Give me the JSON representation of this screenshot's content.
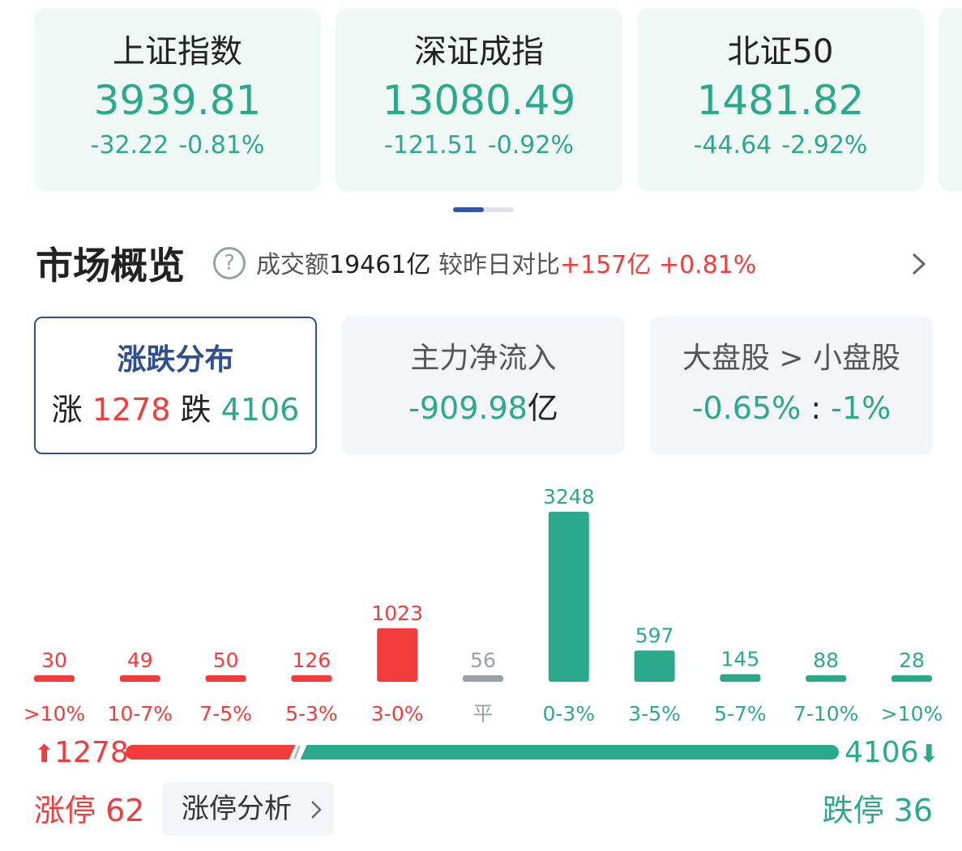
{
  "indices": [
    {
      "name": "上证指数",
      "value": "3939.81",
      "change": "-32.22",
      "pct": "-0.81%"
    },
    {
      "name": "深证成指",
      "value": "13080.49",
      "change": "-121.51",
      "pct": "-0.92%"
    },
    {
      "name": "北证50",
      "value": "1481.82",
      "change": "-44.64",
      "pct": "-2.92%"
    }
  ],
  "overview": {
    "title": "市场概览",
    "turnover_label": "成交额",
    "turnover_value": "19461亿",
    "compare_label": "较昨日对比",
    "compare_value": "+157亿",
    "compare_pct": "+0.81%"
  },
  "tabs": {
    "dist": {
      "title": "涨跌分布",
      "up_label": "涨",
      "up_value": "1278",
      "down_label": "跌",
      "down_value": "4106"
    },
    "flow": {
      "title": "主力净流入",
      "value": "-909.98",
      "unit": "亿"
    },
    "cap": {
      "title": "大盘股 > 小盘股",
      "large": "-0.65%",
      "sep": ":",
      "small": "-1%"
    }
  },
  "chart_data": {
    "type": "bar",
    "categories": [
      ">10%",
      "10-7%",
      "7-5%",
      "5-3%",
      "3-0%",
      "平",
      "0-3%",
      "3-5%",
      "5-7%",
      "7-10%",
      ">10%"
    ],
    "values": [
      30,
      49,
      50,
      126,
      1023,
      56,
      3248,
      597,
      145,
      88,
      28
    ],
    "colors": [
      "#f23c3c",
      "#f23c3c",
      "#f23c3c",
      "#f23c3c",
      "#f23c3c",
      "#9aa0aa",
      "#2aaa8a",
      "#2aaa8a",
      "#2aaa8a",
      "#2aaa8a",
      "#2aaa8a"
    ],
    "ylim": [
      0,
      3248
    ]
  },
  "ratio": {
    "up": "1278",
    "down": "4106",
    "up_color": "#f23c3c",
    "down_color": "#2aaa8a"
  },
  "footer": {
    "limit_up": "涨停 62",
    "analysis": "涨停分析",
    "limit_down": "跌停 36"
  }
}
